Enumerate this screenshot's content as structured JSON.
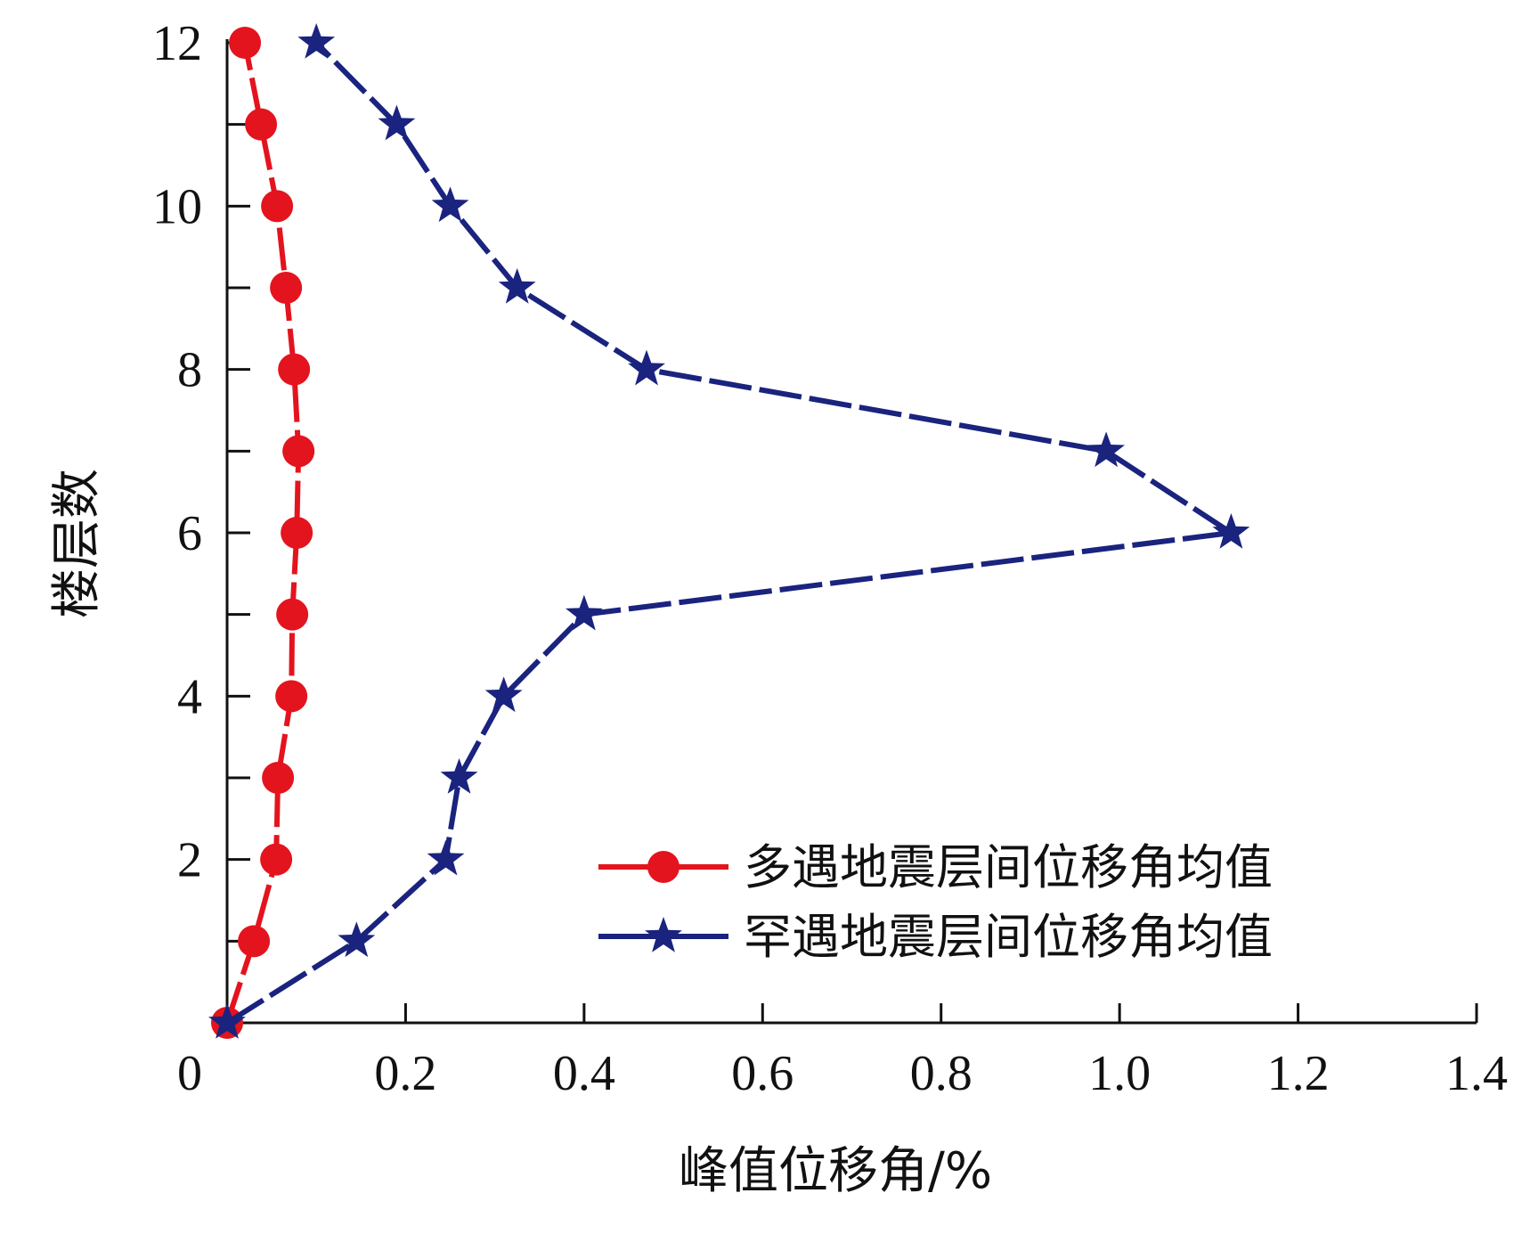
{
  "chart_data": {
    "type": "line",
    "title": "",
    "xlabel": "峰值位移角/%",
    "ylabel": "楼层数",
    "xlim": [
      0,
      1.4
    ],
    "ylim": [
      0,
      12
    ],
    "x_ticks": [
      0,
      0.2,
      0.4,
      0.6,
      0.8,
      1.0,
      1.2,
      1.4
    ],
    "x_tick_labels": [
      "0",
      "0.2",
      "0.4",
      "0.6",
      "0.8",
      "1.0",
      "1.2",
      "1.4"
    ],
    "y_ticks": [
      2,
      4,
      6,
      8,
      10,
      12
    ],
    "y_tick_labels": [
      "2",
      "4",
      "6",
      "8",
      "10",
      "12"
    ],
    "y_minor_ticks": [
      1,
      3,
      5,
      7,
      9,
      11
    ],
    "grid": false,
    "legend_position": "bottom-right",
    "series": [
      {
        "name": "多遇地震层间位移角均值",
        "marker": "circle",
        "color": "#e3141e",
        "line_style": "dashed",
        "points": [
          {
            "x": 0.0,
            "y": 0
          },
          {
            "x": 0.03,
            "y": 1
          },
          {
            "x": 0.055,
            "y": 2
          },
          {
            "x": 0.057,
            "y": 3
          },
          {
            "x": 0.072,
            "y": 4
          },
          {
            "x": 0.073,
            "y": 5
          },
          {
            "x": 0.078,
            "y": 6
          },
          {
            "x": 0.08,
            "y": 7
          },
          {
            "x": 0.075,
            "y": 8
          },
          {
            "x": 0.066,
            "y": 9
          },
          {
            "x": 0.056,
            "y": 10
          },
          {
            "x": 0.038,
            "y": 11
          },
          {
            "x": 0.02,
            "y": 12
          }
        ]
      },
      {
        "name": "罕遇地震层间位移角均值",
        "marker": "star",
        "color": "#1a237e",
        "line_style": "dashed",
        "points": [
          {
            "x": 0.0,
            "y": 0
          },
          {
            "x": 0.145,
            "y": 1
          },
          {
            "x": 0.245,
            "y": 2
          },
          {
            "x": 0.26,
            "y": 3
          },
          {
            "x": 0.31,
            "y": 4
          },
          {
            "x": 0.4,
            "y": 5
          },
          {
            "x": 1.125,
            "y": 6
          },
          {
            "x": 0.985,
            "y": 7
          },
          {
            "x": 0.47,
            "y": 8
          },
          {
            "x": 0.325,
            "y": 9
          },
          {
            "x": 0.25,
            "y": 10
          },
          {
            "x": 0.19,
            "y": 11
          },
          {
            "x": 0.1,
            "y": 12
          }
        ]
      }
    ]
  }
}
